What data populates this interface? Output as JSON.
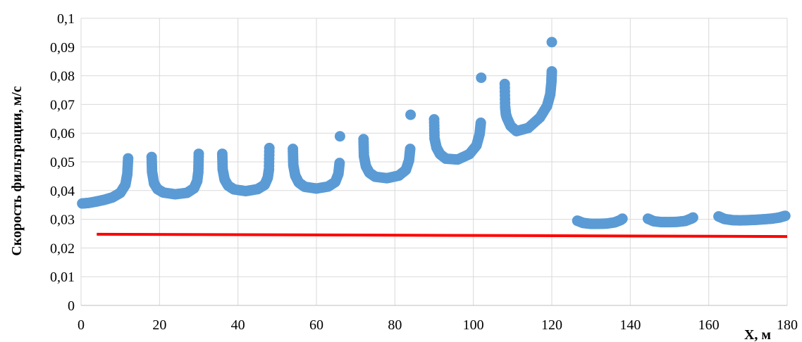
{
  "chart_data": {
    "type": "scatter",
    "title": "",
    "xlabel": "X, м",
    "ylabel": "Скорость фильтрации, м/с",
    "xlim": [
      0,
      180
    ],
    "ylim": [
      0,
      0.1
    ],
    "x_ticks": [
      "0",
      "20",
      "40",
      "60",
      "80",
      "100",
      "120",
      "140",
      "160",
      "180"
    ],
    "y_ticks": [
      "0",
      "0,01",
      "0,02",
      "0,03",
      "0,04",
      "0,05",
      "0,06",
      "0,07",
      "0,08",
      "0,09",
      "0,1"
    ],
    "grid": true,
    "legend": "none",
    "series": [
      {
        "color": "#5b9bd5",
        "marker": "circle",
        "points": [
          [
            0.3,
            0.0355
          ],
          [
            2,
            0.0357
          ],
          [
            4,
            0.0362
          ],
          [
            6,
            0.0368
          ],
          [
            8,
            0.0376
          ],
          [
            10,
            0.0392
          ],
          [
            11.3,
            0.042
          ],
          [
            11.8,
            0.0458
          ],
          [
            12,
            0.0512
          ],
          [
            18,
            0.0517
          ],
          [
            18.1,
            0.0466
          ],
          [
            18.6,
            0.0425
          ],
          [
            19.5,
            0.0405
          ],
          [
            21,
            0.0393
          ],
          [
            24,
            0.0387
          ],
          [
            27,
            0.0392
          ],
          [
            28.8,
            0.0408
          ],
          [
            29.6,
            0.0433
          ],
          [
            29.9,
            0.0466
          ],
          [
            30,
            0.0528
          ],
          [
            36,
            0.0528
          ],
          [
            36.1,
            0.0474
          ],
          [
            36.6,
            0.0438
          ],
          [
            37.5,
            0.0417
          ],
          [
            39,
            0.0404
          ],
          [
            42,
            0.0398
          ],
          [
            45,
            0.0405
          ],
          [
            46.8,
            0.042
          ],
          [
            47.6,
            0.0445
          ],
          [
            47.9,
            0.0474
          ],
          [
            48,
            0.0548
          ],
          [
            54,
            0.0545
          ],
          [
            54.1,
            0.0489
          ],
          [
            54.6,
            0.0452
          ],
          [
            55.5,
            0.0428
          ],
          [
            57,
            0.0413
          ],
          [
            60,
            0.0407
          ],
          [
            63,
            0.0414
          ],
          [
            64.8,
            0.043
          ],
          [
            65.6,
            0.0458
          ],
          [
            65.9,
            0.0496
          ],
          [
            66,
            0.0589
          ],
          [
            72,
            0.0579
          ],
          [
            72.1,
            0.0521
          ],
          [
            72.6,
            0.0485
          ],
          [
            73.5,
            0.0462
          ],
          [
            75,
            0.0448
          ],
          [
            78,
            0.0443
          ],
          [
            81,
            0.0452
          ],
          [
            82.8,
            0.0472
          ],
          [
            83.6,
            0.0505
          ],
          [
            83.9,
            0.0545
          ],
          [
            84,
            0.0664
          ],
          [
            90,
            0.0648
          ],
          [
            90.1,
            0.0582
          ],
          [
            90.6,
            0.055
          ],
          [
            91.5,
            0.0527
          ],
          [
            93,
            0.0511
          ],
          [
            96,
            0.0508
          ],
          [
            99,
            0.0527
          ],
          [
            100.8,
            0.0557
          ],
          [
            101.6,
            0.0597
          ],
          [
            101.9,
            0.0636
          ],
          [
            102,
            0.0793
          ],
          [
            108,
            0.0771
          ],
          [
            108.1,
            0.0692
          ],
          [
            108.3,
            0.0665
          ],
          [
            108.6,
            0.0652
          ],
          [
            109.5,
            0.0625
          ],
          [
            111,
            0.0607
          ],
          [
            114,
            0.0618
          ],
          [
            117,
            0.0655
          ],
          [
            118.8,
            0.0695
          ],
          [
            119.6,
            0.0735
          ],
          [
            119.9,
            0.0778
          ],
          [
            120,
            0.0815
          ],
          [
            120,
            0.0917
          ],
          [
            126.5,
            0.0295
          ],
          [
            128,
            0.0287
          ],
          [
            130,
            0.0284
          ],
          [
            132,
            0.0284
          ],
          [
            134,
            0.0285
          ],
          [
            136,
            0.0289
          ],
          [
            137.5,
            0.0297
          ],
          [
            138,
            0.0302
          ],
          [
            144.5,
            0.0302
          ],
          [
            146,
            0.0293
          ],
          [
            148,
            0.029
          ],
          [
            150,
            0.029
          ],
          [
            152,
            0.0291
          ],
          [
            154,
            0.0294
          ],
          [
            155.5,
            0.0302
          ],
          [
            156,
            0.0306
          ],
          [
            162.5,
            0.031
          ],
          [
            164,
            0.0301
          ],
          [
            166,
            0.0297
          ],
          [
            168,
            0.0296
          ],
          [
            170,
            0.0297
          ],
          [
            172,
            0.0298
          ],
          [
            174,
            0.03
          ],
          [
            176,
            0.0302
          ],
          [
            178,
            0.0306
          ],
          [
            179.5,
            0.0312
          ]
        ]
      },
      {
        "color": "#ff0000",
        "type": "line",
        "points": [
          [
            4,
            0.0248
          ],
          [
            180,
            0.024
          ]
        ]
      }
    ]
  }
}
